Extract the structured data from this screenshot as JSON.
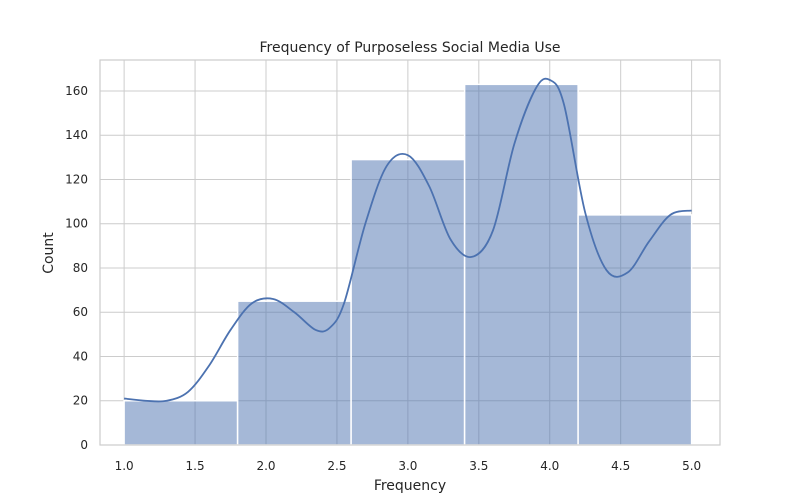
{
  "chart_data": {
    "type": "bar",
    "subtype": "histogram-with-kde",
    "title": "Frequency of Purposeless Social Media Use",
    "xlabel": "Frequency",
    "ylabel": "Count",
    "xlim": [
      0.83,
      5.2
    ],
    "ylim": [
      0,
      174
    ],
    "grid": true,
    "bins": [
      {
        "start": 1.0,
        "end": 1.8,
        "count": 20
      },
      {
        "start": 1.8,
        "end": 2.6,
        "count": 65
      },
      {
        "start": 2.6,
        "end": 3.4,
        "count": 129
      },
      {
        "start": 3.4,
        "end": 4.2,
        "count": 163
      },
      {
        "start": 4.2,
        "end": 5.0,
        "count": 104
      }
    ],
    "kde": {
      "x": [
        1.0,
        1.15,
        1.3,
        1.45,
        1.6,
        1.75,
        1.9,
        2.05,
        2.2,
        2.35,
        2.45,
        2.55,
        2.7,
        2.85,
        3.0,
        3.15,
        3.3,
        3.45,
        3.6,
        3.75,
        3.9,
        4.0,
        4.1,
        4.25,
        4.4,
        4.55,
        4.7,
        4.85,
        5.0
      ],
      "y": [
        21,
        20,
        20,
        24,
        36,
        52,
        64,
        66,
        60,
        52,
        53,
        64,
        100,
        126,
        131,
        117,
        93,
        85,
        97,
        136,
        161,
        165,
        154,
        105,
        79,
        78,
        92,
        104,
        106
      ]
    },
    "x_ticks": [
      "1.0",
      "1.5",
      "2.0",
      "2.5",
      "3.0",
      "3.5",
      "4.0",
      "4.5",
      "5.0"
    ],
    "y_ticks": [
      "0",
      "20",
      "40",
      "60",
      "80",
      "100",
      "120",
      "140",
      "160"
    ],
    "colors": {
      "bar": "#4c72b0",
      "line": "#4c72b0",
      "grid": "#cccccc"
    }
  }
}
